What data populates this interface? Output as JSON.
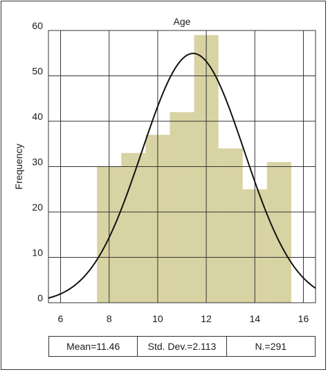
{
  "chart_data": {
    "type": "bar",
    "title": "Age",
    "xlabel": "",
    "ylabel": "Frequency",
    "xlim": [
      5.5,
      16.5
    ],
    "ylim": [
      0,
      60
    ],
    "xticks": [
      6,
      8,
      10,
      12,
      14,
      16
    ],
    "yticks": [
      0,
      10,
      20,
      30,
      40,
      50,
      60
    ],
    "grid": true,
    "bar_color": "#d8d3a2",
    "bins": [
      {
        "start": 7.5,
        "end": 8.5,
        "count": 30
      },
      {
        "start": 8.5,
        "end": 9.5,
        "count": 33
      },
      {
        "start": 9.5,
        "end": 10.5,
        "count": 37
      },
      {
        "start": 10.5,
        "end": 11.5,
        "count": 42
      },
      {
        "start": 11.5,
        "end": 12.5,
        "count": 59
      },
      {
        "start": 12.5,
        "end": 13.5,
        "count": 34
      },
      {
        "start": 13.5,
        "end": 14.5,
        "count": 25
      },
      {
        "start": 14.5,
        "end": 15.5,
        "count": 31
      }
    ],
    "normal_curve": {
      "mean": 11.46,
      "std": 2.113,
      "n": 291,
      "bin_width": 1
    }
  },
  "stats": {
    "mean": "Mean=11.46",
    "std": "Std. Dev.=2.113",
    "n": "N.=291"
  }
}
